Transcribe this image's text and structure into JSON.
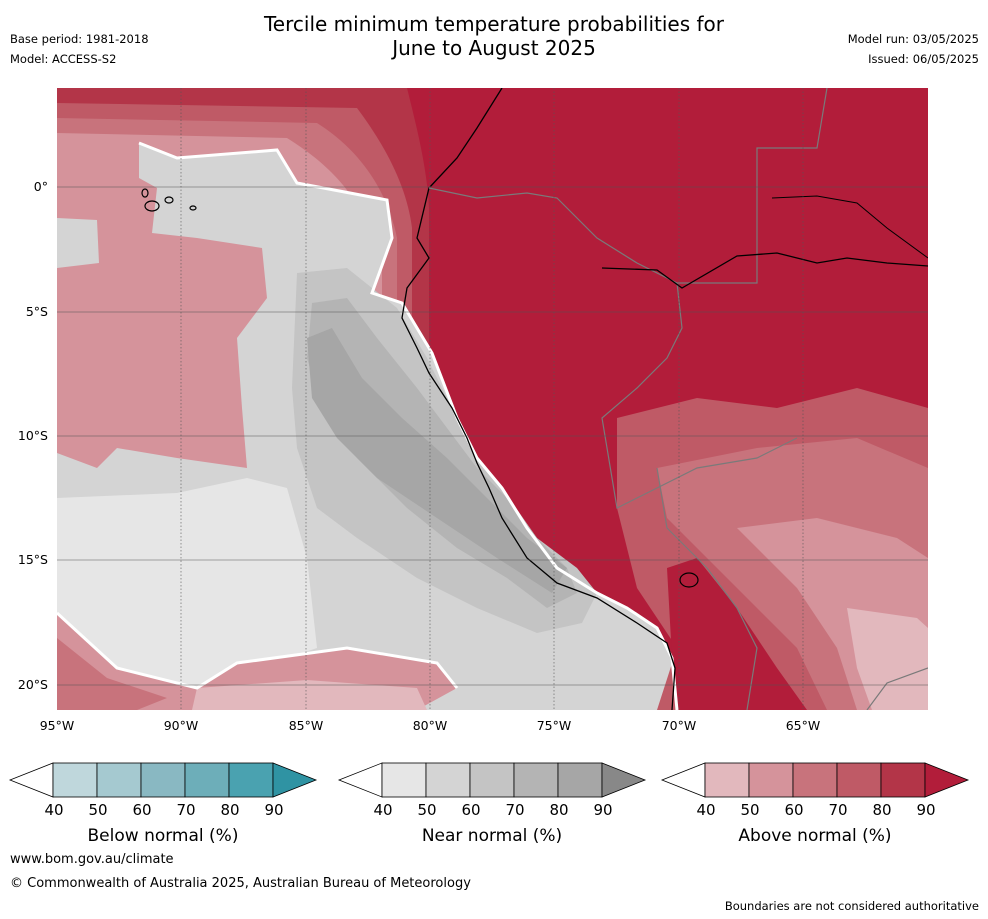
{
  "title_line1": "Tercile minimum temperature probabilities for",
  "title_line2": "June to August 2025",
  "base_period": "Base period: 1981-2018",
  "model": "Model: ACCESS-S2",
  "model_run": "Model run: 03/05/2025",
  "issued": "Issued: 06/05/2025",
  "lat_labels": [
    "0°",
    "5°S",
    "10°S",
    "15°S",
    "20°S"
  ],
  "lon_labels": [
    "95°W",
    "90°W",
    "85°W",
    "80°W",
    "75°W",
    "70°W",
    "65°W"
  ],
  "colorbars": [
    {
      "label": "Below normal (%)",
      "ticks": [
        "40",
        "50",
        "60",
        "70",
        "80",
        "90"
      ],
      "colors": [
        "#ffffff",
        "#bfd7dc",
        "#a5c9d0",
        "#89b8c2",
        "#6daeb9",
        "#4aa2b0",
        "#2f93a3"
      ]
    },
    {
      "label": "Near normal (%)",
      "ticks": [
        "40",
        "50",
        "60",
        "70",
        "80",
        "90"
      ],
      "colors": [
        "#ffffff",
        "#e6e6e6",
        "#d4d4d4",
        "#c4c4c4",
        "#b4b4b4",
        "#a6a6a6",
        "#888888"
      ]
    },
    {
      "label": "Above normal (%)",
      "ticks": [
        "40",
        "50",
        "60",
        "70",
        "80",
        "90"
      ],
      "colors": [
        "#ffffff",
        "#e2b8bd",
        "#d5939b",
        "#c8737c",
        "#bf5a66",
        "#b33548",
        "#b21d3a"
      ]
    }
  ],
  "footer_url": "www.bom.gov.au/climate",
  "footer_copyright": "© Commonwealth of Australia 2025, Australian Bureau of Meteorology",
  "disclaimer": "Boundaries are not considered authoritative"
}
